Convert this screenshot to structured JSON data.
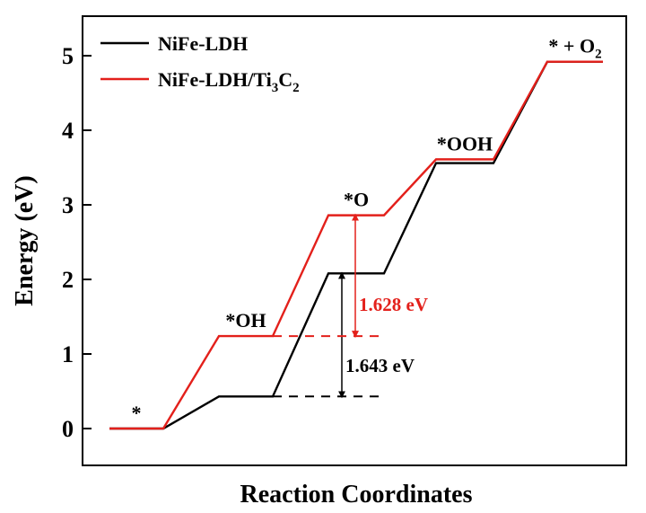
{
  "chart_data": {
    "type": "line",
    "xlabel": "Reaction Coordinates",
    "ylabel": "Energy (eV)",
    "ylim": [
      -0.5,
      5.5
    ],
    "yticks": [
      "0",
      "1",
      "2",
      "3",
      "4",
      "5"
    ],
    "grid": false,
    "legend_position": "top-left",
    "states": [
      "*",
      "*OH",
      "*O",
      "*OOH",
      "* + O2"
    ],
    "state_labels": [
      {
        "text": "*",
        "sub": "",
        "tail": ""
      },
      {
        "text": "*OH",
        "sub": "",
        "tail": ""
      },
      {
        "text": "*O",
        "sub": "",
        "tail": ""
      },
      {
        "text": "*OOH",
        "sub": "",
        "tail": ""
      },
      {
        "text": "* + O",
        "sub": "2",
        "tail": ""
      }
    ],
    "series": [
      {
        "name": "NiFe-LDH",
        "legend": {
          "text": "NiFe-LDH",
          "sub1": "",
          "mid": "",
          "sub2": ""
        },
        "color": "#000000",
        "values": [
          0,
          0.43,
          2.08,
          3.56,
          4.92
        ]
      },
      {
        "name": "NiFe-LDH/Ti3C2",
        "legend": {
          "text": "NiFe-LDH/Ti",
          "sub1": "3",
          "mid": "C",
          "sub2": "2"
        },
        "color": "#e3201b",
        "values": [
          0,
          1.24,
          2.86,
          3.61,
          4.92
        ]
      }
    ],
    "annotations": [
      {
        "series": 0,
        "from_step": 1,
        "to_step": 2,
        "text": "1.643 eV",
        "color": "#000000"
      },
      {
        "series": 1,
        "from_step": 1,
        "to_step": 2,
        "text": "1.628 eV",
        "color": "#e3201b"
      }
    ]
  }
}
